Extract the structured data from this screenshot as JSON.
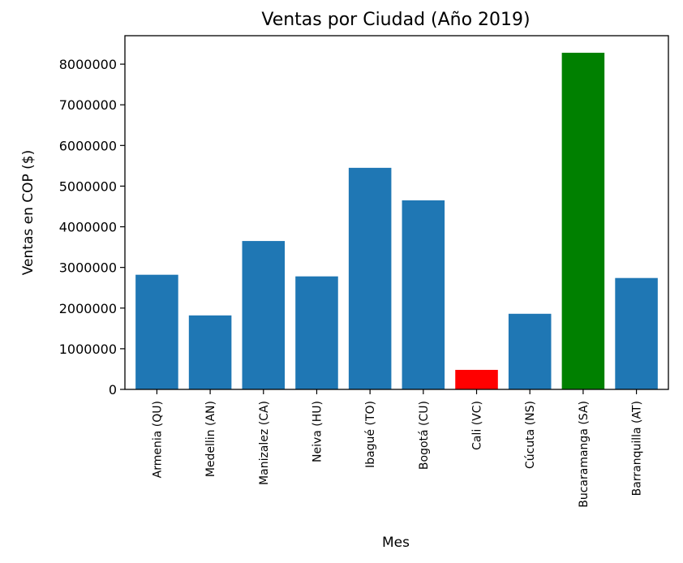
{
  "chart_data": {
    "type": "bar",
    "title": "Ventas por Ciudad (Año 2019)",
    "xlabel": "Mes",
    "ylabel": "Ventas en COP ($)",
    "categories": [
      "Armenia  (QU)",
      "Medellin  (AN)",
      "Manizalez  (CA)",
      "Neiva  (HU)",
      "Ibagué  (TO)",
      "Bogotá  (CU)",
      "Cali  (VC)",
      "Cúcuta  (NS)",
      "Bucaramanga  (SA)",
      "Barranquilla  (AT)"
    ],
    "values": [
      2820000,
      1820000,
      3650000,
      2780000,
      5450000,
      4650000,
      480000,
      1860000,
      8280000,
      2740000
    ],
    "colors": [
      "#1f77b4",
      "#1f77b4",
      "#1f77b4",
      "#1f77b4",
      "#1f77b4",
      "#1f77b4",
      "#ff0000",
      "#1f77b4",
      "#008000",
      "#1f77b4"
    ],
    "yticks": [
      0,
      1000000,
      2000000,
      3000000,
      4000000,
      5000000,
      6000000,
      7000000,
      8000000
    ],
    "ytick_labels": [
      "0",
      "1000000",
      "2000000",
      "3000000",
      "4000000",
      "5000000",
      "6000000",
      "7000000",
      "8000000"
    ],
    "ylim": [
      0,
      8700000
    ],
    "grid": false
  }
}
